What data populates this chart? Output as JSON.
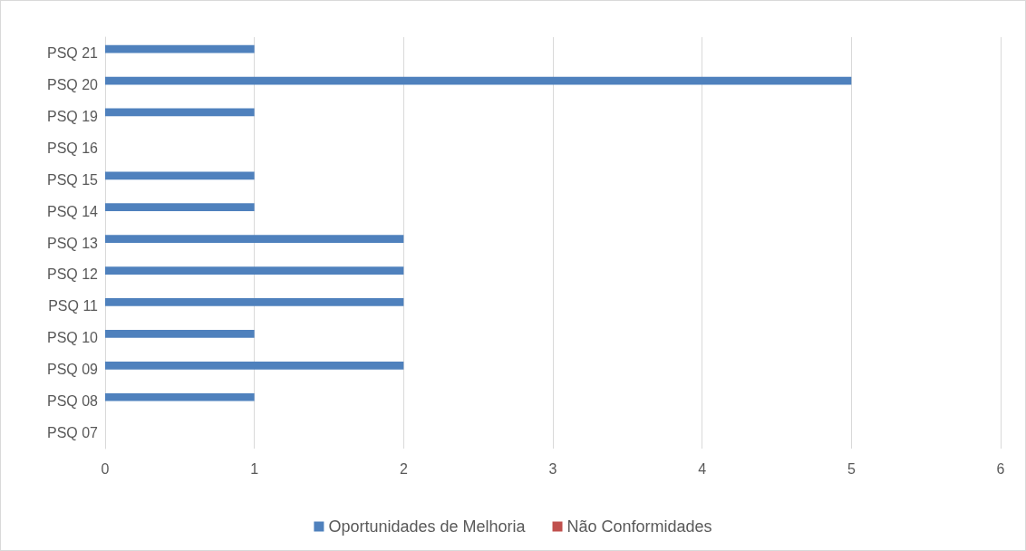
{
  "chart_data": {
    "type": "bar",
    "orientation": "horizontal",
    "categories": [
      "PSQ 21",
      "PSQ 20",
      "PSQ 19",
      "PSQ 16",
      "PSQ 15",
      "PSQ 14",
      "PSQ 13",
      "PSQ 12",
      "PSQ 11",
      "PSQ 10",
      "PSQ 09",
      "PSQ 08",
      "PSQ 07"
    ],
    "series": [
      {
        "name": "Oportunidades de Melhoria",
        "color": "#4f81bd",
        "values": [
          1,
          5,
          1,
          0,
          1,
          1,
          2,
          2,
          2,
          1,
          2,
          1,
          0
        ]
      },
      {
        "name": "Não Conformidades",
        "color": "#c0504d",
        "values": [
          0,
          0,
          0,
          0,
          0,
          0,
          0,
          0,
          0,
          0,
          0,
          0,
          0
        ]
      }
    ],
    "xlim": [
      0,
      6
    ],
    "xticks": [
      0,
      1,
      2,
      3,
      4,
      5,
      6
    ],
    "grid": "x",
    "legend": "bottom"
  }
}
